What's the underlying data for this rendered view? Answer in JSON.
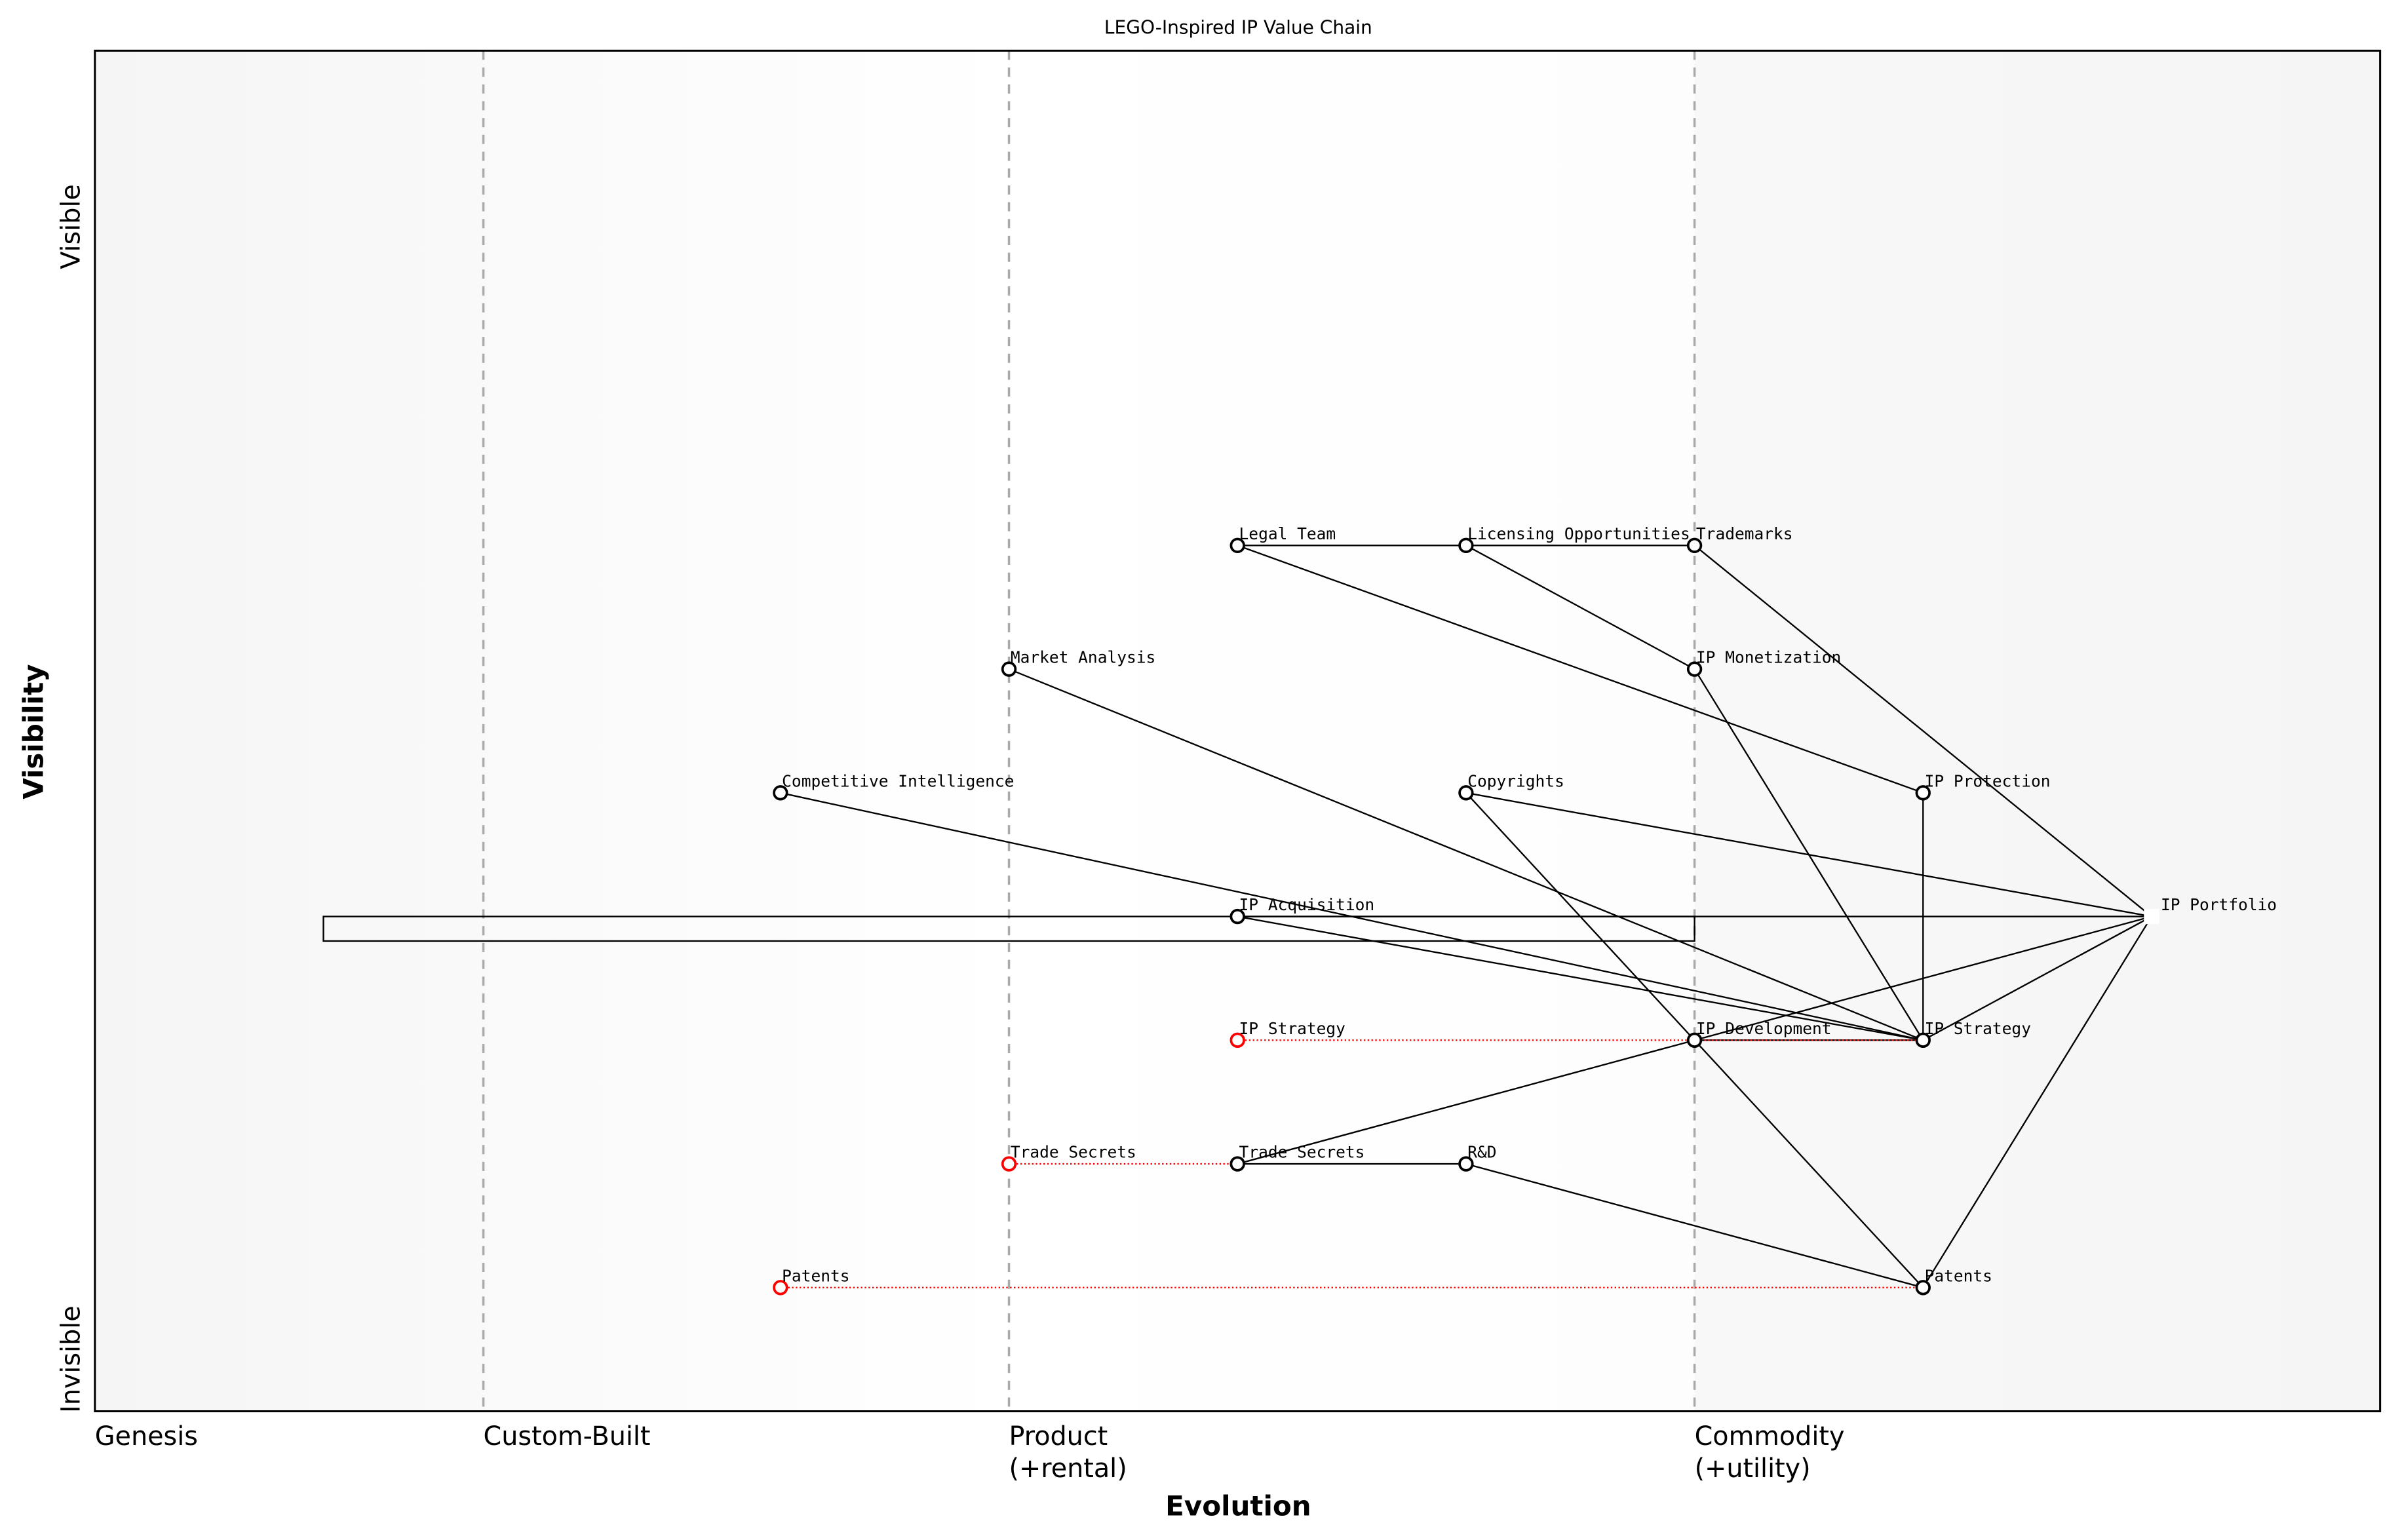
{
  "chart_data": {
    "type": "wardley-map",
    "title": "LEGO-Inspired IP Value Chain",
    "xlabel": "Evolution",
    "ylabel": "Visibility",
    "xlim": [
      0,
      1
    ],
    "ylim": [
      0,
      1.1
    ],
    "grid": false,
    "y_axis_labels": {
      "top": "Visible",
      "bottom": "Invisible"
    },
    "stages": [
      {
        "label": "Genesis",
        "x": 0.0,
        "line": false
      },
      {
        "label": "Custom-Built",
        "x": 0.17,
        "line": true
      },
      {
        "label": "Product\n(+rental)",
        "x": 0.4,
        "line": true
      },
      {
        "label": "Commodity\n(+utility)",
        "x": 0.7,
        "line": true
      }
    ],
    "colors": {
      "node": "#000000",
      "inertia": "#ff0000",
      "stage_line": "#aaaaaa",
      "background_edge": "#f5f5f5",
      "background_mid": "#ffffff"
    },
    "nodes": [
      {
        "id": "legal",
        "label": "Legal Team",
        "x": 0.5,
        "y": 0.7
      },
      {
        "id": "licensing",
        "label": "Licensing Opportunities",
        "x": 0.6,
        "y": 0.7
      },
      {
        "id": "trademarks",
        "label": "Trademarks",
        "x": 0.7,
        "y": 0.7
      },
      {
        "id": "market",
        "label": "Market Analysis",
        "x": 0.4,
        "y": 0.6
      },
      {
        "id": "monetization",
        "label": "IP Monetization",
        "x": 0.7,
        "y": 0.6
      },
      {
        "id": "compintel",
        "label": "Competitive Intelligence",
        "x": 0.3,
        "y": 0.5
      },
      {
        "id": "copyrights",
        "label": "Copyrights",
        "x": 0.6,
        "y": 0.5
      },
      {
        "id": "protection",
        "label": "IP Protection",
        "x": 0.8,
        "y": 0.5
      },
      {
        "id": "acquisition",
        "label": "IP Acquisition",
        "x": 0.5,
        "y": 0.4
      },
      {
        "id": "portfolio",
        "label": "IP Portfolio",
        "x": 0.9,
        "y": 0.4,
        "marker": "square-white"
      },
      {
        "id": "strategy_old",
        "label": "IP Strategy",
        "x": 0.5,
        "y": 0.3,
        "inertia": true
      },
      {
        "id": "development",
        "label": "IP Development",
        "x": 0.7,
        "y": 0.3
      },
      {
        "id": "strategy",
        "label": "IP Strategy",
        "x": 0.8,
        "y": 0.3
      },
      {
        "id": "trade_old",
        "label": "Trade Secrets",
        "x": 0.4,
        "y": 0.2,
        "inertia": true
      },
      {
        "id": "trade",
        "label": "Trade Secrets",
        "x": 0.5,
        "y": 0.2
      },
      {
        "id": "rnd",
        "label": "R&D",
        "x": 0.6,
        "y": 0.2
      },
      {
        "id": "patents_old",
        "label": "Patents",
        "x": 0.3,
        "y": 0.1,
        "inertia": true
      },
      {
        "id": "patents",
        "label": "Patents",
        "x": 0.8,
        "y": 0.1
      }
    ],
    "edges": [
      [
        "legal",
        "licensing"
      ],
      [
        "licensing",
        "trademarks"
      ],
      [
        "legal",
        "protection"
      ],
      [
        "licensing",
        "monetization"
      ],
      [
        "trademarks",
        "portfolio"
      ],
      [
        "monetization",
        "strategy"
      ],
      [
        "market",
        "strategy"
      ],
      [
        "compintel",
        "strategy"
      ],
      [
        "copyrights",
        "portfolio"
      ],
      [
        "copyrights",
        "development"
      ],
      [
        "protection",
        "strategy"
      ],
      [
        "acquisition",
        "strategy"
      ],
      [
        "acquisition",
        "portfolio"
      ],
      [
        "development",
        "portfolio"
      ],
      [
        "strategy",
        "portfolio"
      ],
      [
        "development",
        "strategy"
      ],
      [
        "trade",
        "development"
      ],
      [
        "trade",
        "rnd"
      ],
      [
        "rnd",
        "patents"
      ],
      [
        "development",
        "patents"
      ],
      [
        "patents",
        "portfolio"
      ]
    ],
    "evolution_edges": [
      [
        "strategy_old",
        "strategy"
      ],
      [
        "trade_old",
        "trade"
      ],
      [
        "patents_old",
        "patents"
      ]
    ],
    "pipelines": [
      {
        "y": 0.4,
        "x_start": 0.1,
        "x_end": 0.7
      }
    ]
  }
}
